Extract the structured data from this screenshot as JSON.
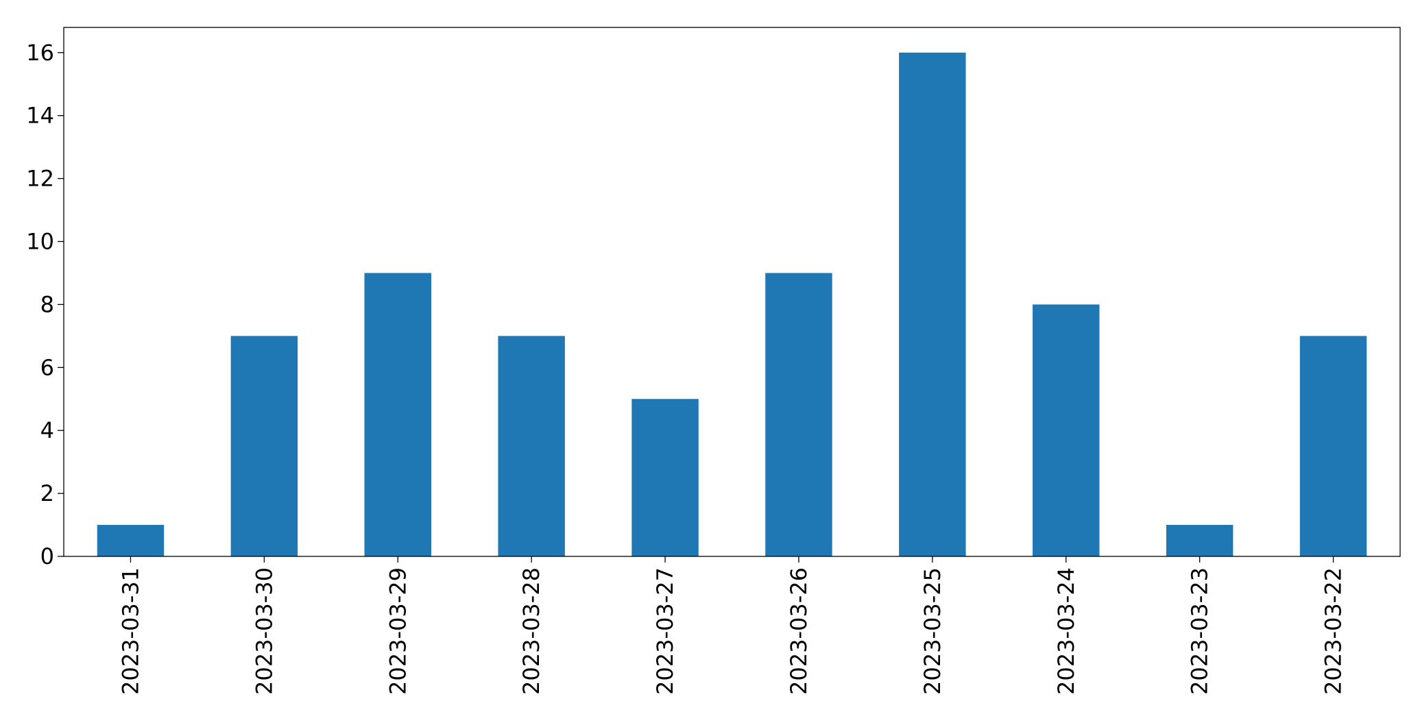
{
  "chart_data": {
    "type": "bar",
    "categories": [
      "2023-03-31",
      "2023-03-30",
      "2023-03-29",
      "2023-03-28",
      "2023-03-27",
      "2023-03-26",
      "2023-03-25",
      "2023-03-24",
      "2023-03-23",
      "2023-03-22"
    ],
    "values": [
      1,
      7,
      9,
      7,
      5,
      9,
      16,
      8,
      1,
      7
    ],
    "color": "#1f77b4",
    "ylim": [
      0,
      16.8
    ],
    "yticks": [
      0,
      2,
      4,
      6,
      8,
      10,
      12,
      14,
      16
    ],
    "grid": false
  }
}
